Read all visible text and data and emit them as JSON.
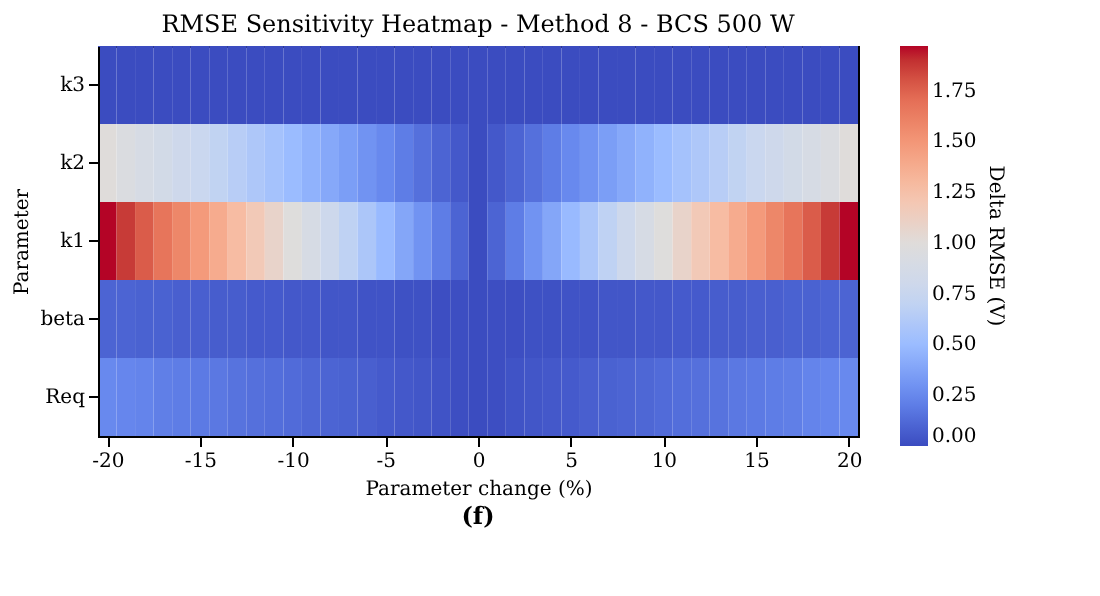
{
  "chart_data": {
    "type": "heatmap",
    "title": "RMSE Sensitivity Heatmap - Method 8 - BCS 500 W",
    "xlabel": "Parameter change (%)",
    "ylabel": "Parameter",
    "clabel": "Delta RMSE (V)",
    "x": [
      -20,
      -19,
      -18,
      -17,
      -16,
      -15,
      -14,
      -13,
      -12,
      -11,
      -10,
      -9,
      -8,
      -7,
      -6,
      -5,
      -4,
      -3,
      -2,
      -1,
      0,
      1,
      2,
      3,
      4,
      5,
      6,
      7,
      8,
      9,
      10,
      11,
      12,
      13,
      14,
      15,
      16,
      17,
      18,
      19,
      20
    ],
    "xlim": [
      -20.5,
      20.5
    ],
    "xticks": [
      -20,
      -15,
      -10,
      -5,
      0,
      5,
      10,
      15,
      20
    ],
    "y_categories": [
      "k3",
      "k2",
      "k1",
      "beta",
      "Req"
    ],
    "cells": [
      [
        0,
        0,
        0,
        0,
        0,
        0,
        0,
        0,
        0,
        0,
        0,
        0,
        0,
        0,
        0,
        0,
        0,
        0,
        0,
        0,
        0,
        0,
        0,
        0,
        0,
        0,
        0,
        0,
        0,
        0,
        0,
        0,
        0,
        0,
        0,
        0,
        0,
        0,
        0,
        0,
        0
      ],
      [
        1.0,
        0.95,
        0.9,
        0.85,
        0.8,
        0.75,
        0.7,
        0.65,
        0.6,
        0.55,
        0.5,
        0.45,
        0.4,
        0.35,
        0.3,
        0.25,
        0.2,
        0.15,
        0.1,
        0.05,
        0,
        0.05,
        0.1,
        0.15,
        0.2,
        0.25,
        0.3,
        0.35,
        0.4,
        0.45,
        0.5,
        0.55,
        0.6,
        0.65,
        0.7,
        0.75,
        0.8,
        0.85,
        0.9,
        0.95,
        1.0
      ],
      [
        1.97,
        1.87,
        1.77,
        1.67,
        1.58,
        1.48,
        1.38,
        1.28,
        1.18,
        1.08,
        0.99,
        0.89,
        0.79,
        0.69,
        0.59,
        0.49,
        0.39,
        0.3,
        0.2,
        0.1,
        0,
        0.1,
        0.2,
        0.3,
        0.39,
        0.49,
        0.59,
        0.69,
        0.79,
        0.89,
        0.99,
        1.08,
        1.18,
        1.28,
        1.38,
        1.48,
        1.58,
        1.67,
        1.77,
        1.87,
        1.97
      ],
      [
        0.1,
        0.1,
        0.09,
        0.09,
        0.08,
        0.08,
        0.07,
        0.07,
        0.06,
        0.06,
        0.05,
        0.05,
        0.04,
        0.04,
        0.03,
        0.03,
        0.02,
        0.02,
        0.01,
        0.01,
        0,
        0.01,
        0.01,
        0.02,
        0.02,
        0.03,
        0.03,
        0.04,
        0.04,
        0.05,
        0.05,
        0.06,
        0.06,
        0.07,
        0.07,
        0.08,
        0.08,
        0.09,
        0.09,
        0.1,
        0.1
      ],
      [
        0.25,
        0.24,
        0.23,
        0.21,
        0.2,
        0.19,
        0.18,
        0.16,
        0.15,
        0.14,
        0.13,
        0.11,
        0.1,
        0.09,
        0.08,
        0.06,
        0.05,
        0.04,
        0.03,
        0.01,
        0,
        0.01,
        0.03,
        0.04,
        0.05,
        0.06,
        0.08,
        0.09,
        0.1,
        0.11,
        0.13,
        0.14,
        0.15,
        0.16,
        0.18,
        0.19,
        0.2,
        0.21,
        0.23,
        0.24,
        0.25
      ]
    ],
    "clim": [
      0,
      1.97
    ],
    "cticks": [
      {
        "value": 0,
        "label": "0.00"
      },
      0.25,
      {
        "value": 0.5,
        "label": "0.50"
      },
      0.75,
      {
        "value": 1,
        "label": "1.00"
      },
      1.25,
      {
        "value": 1.5,
        "label": "1.50"
      },
      1.75
    ],
    "grid": false,
    "annotations": [
      "(f)"
    ]
  }
}
